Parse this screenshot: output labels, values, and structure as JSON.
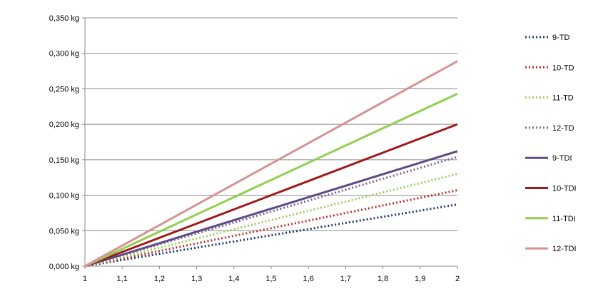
{
  "chart_data": {
    "type": "line",
    "x": [
      1,
      2
    ],
    "xlim": [
      1,
      2
    ],
    "ylim": [
      0,
      0.35
    ],
    "xticks": [
      "1",
      "1,1",
      "1,2",
      "1,3",
      "1,4",
      "1,5",
      "1,6",
      "1,7",
      "1,8",
      "1,9",
      "2"
    ],
    "yticks": [
      "0,000 kg",
      "0,050 kg",
      "0,100 kg",
      "0,150 kg",
      "0,200 kg",
      "0,250 kg",
      "0,300 kg",
      "0,350 kg"
    ],
    "grid": "horizontal",
    "legend": "right",
    "series": [
      {
        "name": "9-TD",
        "values": [
          0,
          0.087
        ],
        "color": "#1f3a6e",
        "dashed": true
      },
      {
        "name": "10-TD",
        "values": [
          0,
          0.107
        ],
        "color": "#b83232",
        "dashed": true
      },
      {
        "name": "11-TD",
        "values": [
          0,
          0.13
        ],
        "color": "#9ccf5a",
        "dashed": true
      },
      {
        "name": "12-TD",
        "values": [
          0,
          0.154
        ],
        "color": "#7b6690",
        "dashed": true
      },
      {
        "name": "9-TDI",
        "values": [
          0,
          0.162
        ],
        "color": "#5e4a86",
        "dashed": false
      },
      {
        "name": "10-TDI",
        "values": [
          0,
          0.2
        ],
        "color": "#a01818",
        "dashed": false
      },
      {
        "name": "11-TDI",
        "values": [
          0,
          0.243
        ],
        "color": "#92cf50",
        "dashed": false
      },
      {
        "name": "12-TDI",
        "values": [
          0,
          0.289
        ],
        "color": "#d49494",
        "dashed": false
      }
    ]
  }
}
